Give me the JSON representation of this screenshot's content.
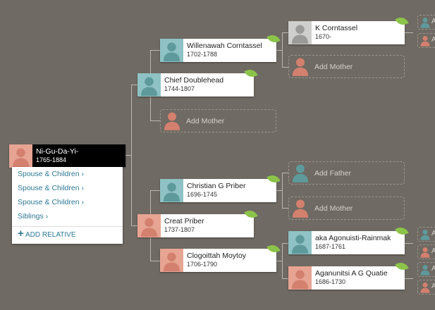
{
  "root": {
    "name": "Ni-Gu-Da-Yi-",
    "dates": "1765-1884",
    "gender": "female"
  },
  "menu": {
    "items": [
      "Spouse & Children",
      "Spouse & Children",
      "Spouse & Children",
      "Siblings"
    ],
    "add_relative": "ADD RELATIVE"
  },
  "people": {
    "chief": {
      "name": "Chief Doublehead",
      "dates": "1744-1807"
    },
    "willenawah": {
      "name": "Willenawah Corntassel",
      "dates": "1702-1788"
    },
    "kcorn": {
      "name": "K Corntassel",
      "dates": "1670-"
    },
    "christian": {
      "name": "Christian G Priber",
      "dates": "1696-1745"
    },
    "creat": {
      "name": "Creat Priber",
      "dates": "1737-1807"
    },
    "clog": {
      "name": "Clogoittah Moytoy",
      "dates": "1706-1790"
    },
    "aka": {
      "name": "aka Agonuisti-Rainmak",
      "dates": "1687-1761"
    },
    "agan": {
      "name": "Aganunitsi A G Quatie",
      "dates": "1686-1730"
    }
  },
  "add": {
    "mother": "Add Mother",
    "father": "Add Father",
    "stub": "A"
  },
  "colors": {
    "background": "#6f6a63",
    "male": "#8fc2c4",
    "female": "#e7a493",
    "link": "#2d7894",
    "leaf": "#8cc44a"
  }
}
